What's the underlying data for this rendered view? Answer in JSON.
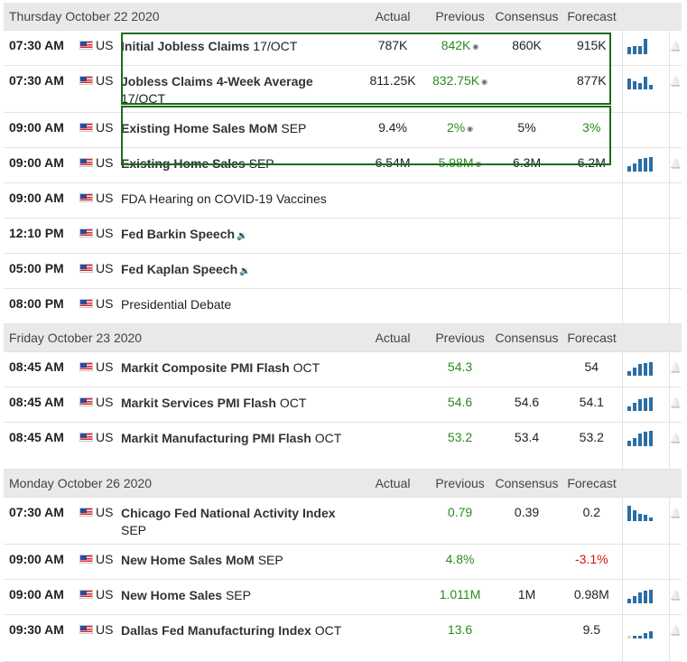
{
  "headers": {
    "actual": "Actual",
    "previous": "Previous",
    "consensus": "Consensus",
    "forecast": "Forecast"
  },
  "days": [
    {
      "date": "Thursday October 22 2020",
      "events": [
        {
          "time": "07:30 AM",
          "country": "US",
          "name_bold": "Initial Jobless Claims",
          "name_rest": " 17/OCT",
          "actual": "787K",
          "previous": "842K",
          "previous_color": "green",
          "previous_revised": true,
          "consensus": "860K",
          "forecast": "915K",
          "forecast_color": "",
          "chart": [
            0.45,
            0.55,
            0.5,
            1.0
          ],
          "bell": true
        },
        {
          "time": "07:30 AM",
          "country": "US",
          "name_bold": "Jobless Claims 4-Week Average",
          "name_rest": " 17/OCT",
          "actual": "811.25K",
          "previous": "832.75K",
          "previous_color": "green",
          "previous_revised": true,
          "consensus": "",
          "forecast": "877K",
          "forecast_color": "",
          "chart": [
            0.7,
            0.5,
            0.4,
            0.8,
            0.3
          ],
          "bell": true,
          "tall": true
        },
        {
          "time": "09:00 AM",
          "country": "US",
          "name_bold": "Existing Home Sales MoM",
          "name_rest": " SEP",
          "actual": "9.4%",
          "previous": "2%",
          "previous_color": "green",
          "previous_revised": true,
          "consensus": "5%",
          "forecast": "3%",
          "forecast_color": "green",
          "chart": [],
          "bell": false
        },
        {
          "time": "09:00 AM",
          "country": "US",
          "name_bold": "Existing Home Sales",
          "name_rest": " SEP",
          "actual": "6.54M",
          "previous": "5.98M",
          "previous_color": "green",
          "previous_revised": true,
          "consensus": "6.3M",
          "forecast": "6.2M",
          "forecast_color": "",
          "chart": [
            0.35,
            0.5,
            0.8,
            0.9,
            0.95
          ],
          "bell": true
        },
        {
          "time": "09:00 AM",
          "country": "US",
          "name_bold": "",
          "name_rest": "FDA Hearing on COVID-19 Vaccines",
          "actual": "",
          "previous": "",
          "consensus": "",
          "forecast": "",
          "chart": [],
          "bell": false
        },
        {
          "time": "12:10 PM",
          "country": "US",
          "name_bold": "Fed Barkin Speech",
          "name_rest": "",
          "speaker": true,
          "actual": "",
          "previous": "",
          "consensus": "",
          "forecast": "",
          "chart": [],
          "bell": false
        },
        {
          "time": "05:00 PM",
          "country": "US",
          "name_bold": "Fed Kaplan Speech",
          "name_rest": "",
          "speaker": true,
          "actual": "",
          "previous": "",
          "consensus": "",
          "forecast": "",
          "chart": [],
          "bell": false
        },
        {
          "time": "08:00 PM",
          "country": "US",
          "name_bold": "",
          "name_rest": "Presidential Debate",
          "actual": "",
          "previous": "",
          "consensus": "",
          "forecast": "",
          "chart": [],
          "bell": false
        }
      ]
    },
    {
      "date": "Friday October 23 2020",
      "events": [
        {
          "time": "08:45 AM",
          "country": "US",
          "name_bold": "Markit Composite PMI Flash",
          "name_rest": " OCT",
          "actual": "",
          "previous": "54.3",
          "previous_color": "green",
          "consensus": "",
          "forecast": "54",
          "forecast_color": "",
          "chart": [
            0.3,
            0.5,
            0.75,
            0.85,
            0.9
          ],
          "bell": true
        },
        {
          "time": "08:45 AM",
          "country": "US",
          "name_bold": "Markit Services PMI Flash",
          "name_rest": " OCT",
          "actual": "",
          "previous": "54.6",
          "previous_color": "green",
          "consensus": "54.6",
          "forecast": "54.1",
          "forecast_color": "",
          "chart": [
            0.3,
            0.5,
            0.75,
            0.85,
            0.9
          ],
          "bell": true
        },
        {
          "time": "08:45 AM",
          "country": "US",
          "name_bold": "Markit Manufacturing PMI Flash",
          "name_rest": " OCT",
          "actual": "",
          "previous": "53.2",
          "previous_color": "green",
          "consensus": "53.4",
          "forecast": "53.2",
          "forecast_color": "",
          "chart": [
            0.35,
            0.5,
            0.8,
            0.95,
            1.0
          ],
          "bell": true,
          "tall": true
        }
      ]
    },
    {
      "date": "Monday October 26 2020",
      "events": [
        {
          "time": "07:30 AM",
          "country": "US",
          "name_bold": "Chicago Fed National Activity Index",
          "name_rest": " SEP",
          "actual": "",
          "previous": "0.79",
          "previous_color": "green",
          "consensus": "0.39",
          "forecast": "0.2",
          "forecast_color": "",
          "chart": [
            1.0,
            0.7,
            0.45,
            0.4,
            0.25
          ],
          "bell": true,
          "tall": true
        },
        {
          "time": "09:00 AM",
          "country": "US",
          "name_bold": "New Home Sales MoM",
          "name_rest": " SEP",
          "actual": "",
          "previous": "4.8%",
          "previous_color": "green",
          "consensus": "",
          "forecast": "-3.1%",
          "forecast_color": "red",
          "chart": [],
          "bell": false
        },
        {
          "time": "09:00 AM",
          "country": "US",
          "name_bold": "New Home Sales",
          "name_rest": " SEP",
          "actual": "",
          "previous": "1.011M",
          "previous_color": "green",
          "consensus": "1M",
          "forecast": "0.98M",
          "forecast_color": "",
          "chart": [
            0.3,
            0.45,
            0.7,
            0.85,
            0.9
          ],
          "bell": true
        },
        {
          "time": "09:30 AM",
          "country": "US",
          "name_bold": "Dallas Fed Manufacturing Index",
          "name_rest": " OCT",
          "actual": "",
          "previous": "13.6",
          "previous_color": "green",
          "consensus": "",
          "forecast": "9.5",
          "forecast_color": "",
          "chart": [
            -0.15,
            0.1,
            0.2,
            0.35,
            0.45
          ],
          "bell": true,
          "tall": true
        }
      ]
    }
  ],
  "colors": {
    "green": "#2a8b1f",
    "red": "#d11",
    "bar": "#2a6ea6",
    "bar_negative": "#e6dc9a",
    "highlight_box": "#1c6b1c"
  },
  "icons": {
    "flag": "us-flag-icon",
    "revised": "revised-dot-icon",
    "speaker": "speaker-icon",
    "bell": "bell-icon",
    "chart": "bar-chart-icon"
  }
}
